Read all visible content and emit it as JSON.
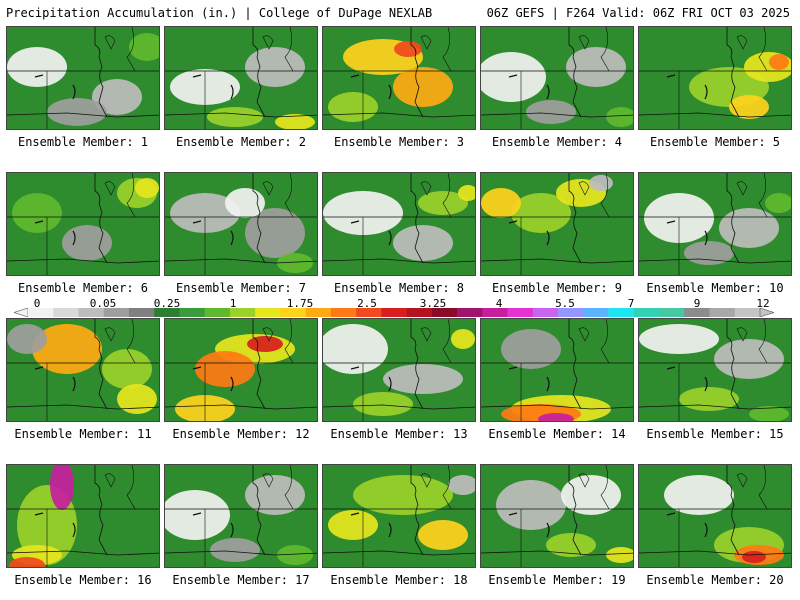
{
  "header": {
    "left_title": "Precipitation Accumulation (in.) | College of DuPage NEXLAB",
    "right_title": "06Z GEFS | F264 Valid: 06Z FRI OCT 03 2025"
  },
  "members": [
    {
      "label": "Ensemble Member: 1"
    },
    {
      "label": "Ensemble Member: 2"
    },
    {
      "label": "Ensemble Member: 3"
    },
    {
      "label": "Ensemble Member: 4"
    },
    {
      "label": "Ensemble Member: 5"
    },
    {
      "label": "Ensemble Member: 6"
    },
    {
      "label": "Ensemble Member: 7"
    },
    {
      "label": "Ensemble Member: 8"
    },
    {
      "label": "Ensemble Member: 9"
    },
    {
      "label": "Ensemble Member: 10"
    },
    {
      "label": "Ensemble Member: 11"
    },
    {
      "label": "Ensemble Member: 12"
    },
    {
      "label": "Ensemble Member: 13"
    },
    {
      "label": "Ensemble Member: 14"
    },
    {
      "label": "Ensemble Member: 15"
    },
    {
      "label": "Ensemble Member: 16"
    },
    {
      "label": "Ensemble Member: 17"
    },
    {
      "label": "Ensemble Member: 18"
    },
    {
      "label": "Ensemble Member: 19"
    },
    {
      "label": "Ensemble Member: 20"
    }
  ],
  "colorbar": {
    "labels": [
      "0",
      "0.05",
      "0.25",
      "1",
      "1.75",
      "2.5",
      "3.25",
      "4",
      "5.5",
      "7",
      "9",
      "12"
    ],
    "colors": [
      "#f2f2f2",
      "#d9d9d9",
      "#bdbdbd",
      "#9e9e9e",
      "#808080",
      "#2e7d32",
      "#3a9b3a",
      "#5fb82e",
      "#9bd12a",
      "#e6e61e",
      "#ffd21e",
      "#ffaa14",
      "#ff7a14",
      "#f04a1e",
      "#d81e1e",
      "#b4141e",
      "#8c0a28",
      "#a0146e",
      "#c81e9e",
      "#e632d2",
      "#c864f0",
      "#9696ff",
      "#5ab4ff",
      "#1ee6f0",
      "#32d2b4",
      "#46c8a0",
      "#8c8c8c",
      "#a8a8a8",
      "#c4c4c4"
    ]
  }
}
